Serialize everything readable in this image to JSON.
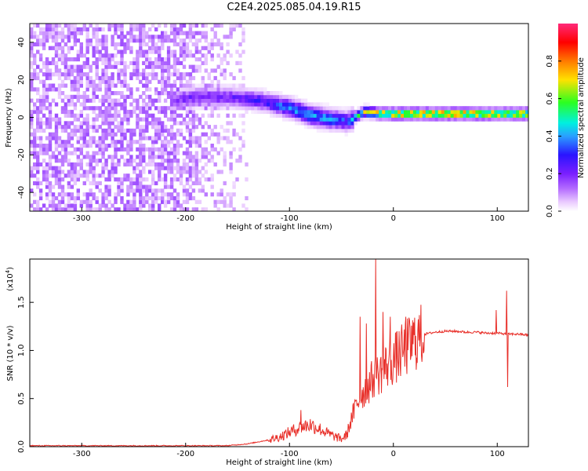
{
  "title": "C2E4.2025.085.04.19.R15",
  "colors": {
    "snr_line": "#e8302a",
    "axis": "#000000",
    "colormap": [
      "#ffffff",
      "#e9c9ff",
      "#b46cff",
      "#7a1fff",
      "#2a14ff",
      "#2aa0ff",
      "#00f0e0",
      "#2cff20",
      "#ffe100",
      "#ff7a00",
      "#ff0000",
      "#ff2a7a"
    ]
  },
  "chart_data": [
    {
      "type": "heatmap",
      "xlabel": "Height of straight line (km)",
      "ylabel": "Frequency (Hz)",
      "xlim": [
        -350,
        130
      ],
      "ylim": [
        -50,
        50
      ],
      "xticks": [
        -300,
        -200,
        -100,
        0,
        100
      ],
      "xtick_labels": [
        "-300",
        "-200",
        "-100",
        "0",
        "100"
      ],
      "yticks": [
        -40,
        -20,
        0,
        20,
        40
      ],
      "ytick_labels": [
        "-40",
        "-20",
        "0",
        "20",
        "40"
      ],
      "colorbar": {
        "label": "Normalized spectral amplitude",
        "range": [
          0,
          1
        ],
        "ticks": [
          0,
          0.2,
          0.4,
          0.6,
          0.8
        ],
        "tick_labels": [
          "0.0",
          "0.2",
          "0.4",
          "0.6",
          "0.8"
        ]
      },
      "ridge": {
        "x": [
          -215,
          -190,
          -160,
          -130,
          -100,
          -80,
          -60,
          -45,
          -30,
          -10,
          10,
          40,
          70,
          90,
          110,
          130
        ],
        "freq": [
          8,
          10,
          10,
          8,
          4,
          0,
          -2,
          -3,
          2,
          1,
          1,
          1,
          1,
          1,
          1,
          1
        ],
        "amplitude": [
          0.25,
          0.3,
          0.3,
          0.35,
          0.45,
          0.5,
          0.45,
          0.4,
          0.7,
          0.8,
          0.85,
          0.85,
          0.85,
          0.8,
          0.8,
          0.75
        ]
      },
      "noise_region": [
        -350,
        -140
      ]
    },
    {
      "type": "line",
      "xlabel": "Height of straight line (km)",
      "ylabel": "SNR (10 * v/v)",
      "y_multiplier": "(x10",
      "y_multiplier_exp": "4",
      "xlim": [
        -350,
        130
      ],
      "ylim": [
        0,
        1.95
      ],
      "xticks": [
        -300,
        -200,
        -100,
        0,
        100
      ],
      "xtick_labels": [
        "-300",
        "-200",
        "-100",
        "0",
        "100"
      ],
      "yticks": [
        0,
        0.5,
        1.0,
        1.5
      ],
      "ytick_labels": [
        "0.0",
        "0.5",
        "1.0",
        "1.5"
      ],
      "baseline": {
        "x": [
          -350,
          -160,
          -140,
          -120,
          -110,
          -100,
          -90,
          -80,
          -70,
          -60,
          -50,
          -45,
          -40,
          -35,
          -30,
          -25,
          -20,
          -15,
          -10,
          -5,
          0,
          5,
          10,
          15,
          20,
          25,
          30,
          40,
          50,
          60,
          70,
          80,
          90,
          100,
          110,
          120,
          130
        ],
        "y": [
          0.01,
          0.01,
          0.03,
          0.07,
          0.1,
          0.15,
          0.2,
          0.23,
          0.18,
          0.12,
          0.08,
          0.12,
          0.3,
          0.45,
          0.55,
          0.62,
          0.7,
          0.75,
          0.8,
          0.86,
          0.9,
          0.95,
          1.0,
          1.05,
          1.1,
          1.14,
          1.17,
          1.19,
          1.2,
          1.2,
          1.19,
          1.19,
          1.18,
          1.18,
          1.17,
          1.17,
          1.16
        ]
      },
      "spikes": [
        {
          "x": -89,
          "y": 0.38
        },
        {
          "x": -32,
          "y": 1.35
        },
        {
          "x": -26,
          "y": 1.28
        },
        {
          "x": -17,
          "y": 1.95
        },
        {
          "x": -10,
          "y": 1.4
        },
        {
          "x": -3,
          "y": 1.35
        },
        {
          "x": 12,
          "y": 1.35
        },
        {
          "x": 99,
          "y": 1.42
        },
        {
          "x": 109,
          "y": 1.62
        },
        {
          "x": 110,
          "y": 0.62
        }
      ]
    }
  ]
}
